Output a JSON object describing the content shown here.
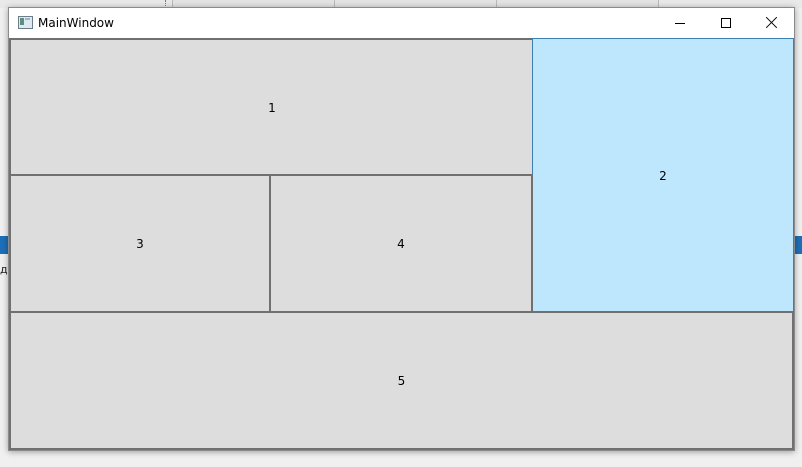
{
  "window": {
    "title": "MainWindow",
    "icons": {
      "app": "app-window-icon",
      "minimize": "minimize-icon",
      "maximize": "maximize-icon",
      "close": "close-icon"
    }
  },
  "grid": {
    "buttons": [
      {
        "label": "1",
        "state": "normal"
      },
      {
        "label": "2",
        "state": "hover"
      },
      {
        "label": "3",
        "state": "normal"
      },
      {
        "label": "4",
        "state": "normal"
      },
      {
        "label": "5",
        "state": "normal"
      }
    ]
  },
  "background": {
    "left_text": "да"
  },
  "colors": {
    "button_bg": "#dddddd",
    "button_border": "#707070",
    "hover_bg": "#bee6fd",
    "hover_border": "#3c7fb1",
    "accent_strip": "#1c6fb8"
  }
}
